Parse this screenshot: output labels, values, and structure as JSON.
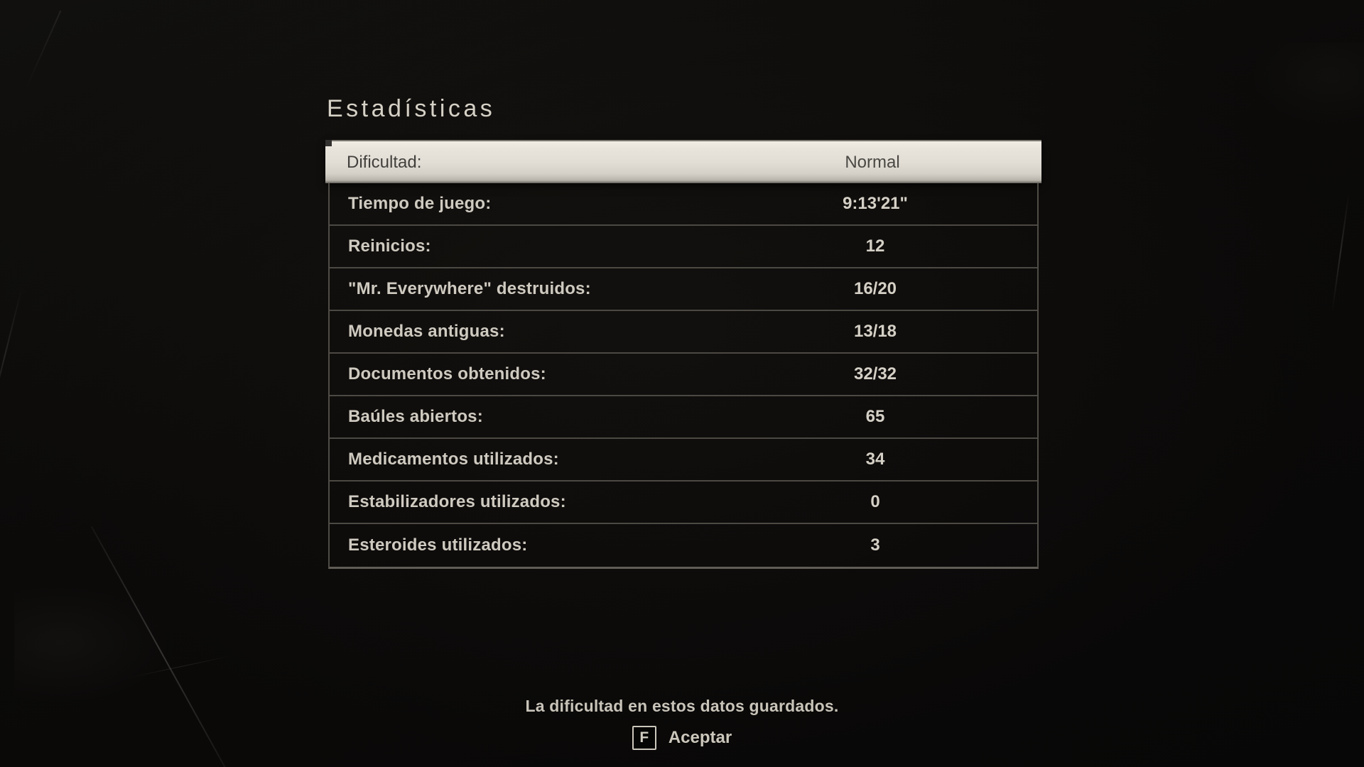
{
  "title": "Estadísticas",
  "table": {
    "highlighted_row": {
      "label": "Dificultad:",
      "value": "Normal"
    },
    "rows": [
      {
        "label": "Tiempo de juego:",
        "value": "9:13'21\""
      },
      {
        "label": "Reinicios:",
        "value": "12"
      },
      {
        "label": "\"Mr. Everywhere\" destruidos:",
        "value": "16/20"
      },
      {
        "label": "Monedas antiguas:",
        "value": "13/18"
      },
      {
        "label": "Documentos obtenidos:",
        "value": "32/32"
      },
      {
        "label": "Baúles abiertos:",
        "value": "65"
      },
      {
        "label": "Medicamentos utilizados:",
        "value": "34"
      },
      {
        "label": "Estabilizadores utilizados:",
        "value": "0"
      },
      {
        "label": "Esteroides utilizados:",
        "value": "3"
      }
    ]
  },
  "footer": {
    "message": "La dificultad en estos datos guardados.",
    "key_hint": {
      "key": "F",
      "action": "Aceptar"
    }
  },
  "colors": {
    "background": "#0b0a09",
    "highlight_row_bg": "#e2ded6",
    "highlight_text": "#42403c",
    "row_text": "#cfcac0",
    "title_text": "#d6d1c6",
    "separator": "#4c4943"
  }
}
